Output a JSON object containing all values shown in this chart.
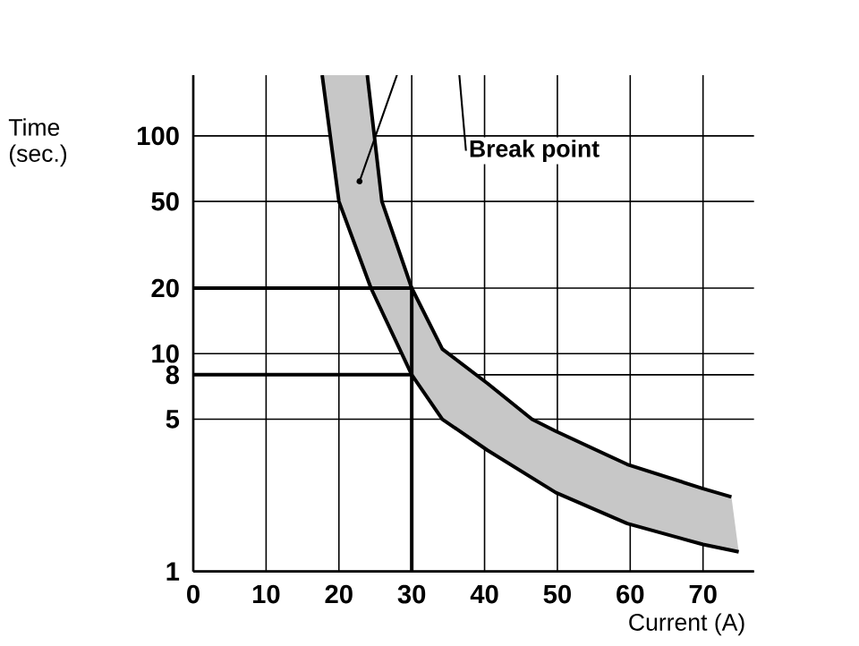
{
  "chart_data": {
    "type": "line",
    "xlabel": "Current (A)",
    "ylabel": "Time (sec.)",
    "log": "y",
    "grid": true,
    "marker": "none",
    "line_style": "solid",
    "xlim": [
      0,
      77
    ],
    "ylim": [
      1,
      190
    ],
    "xticks": [
      0,
      10,
      20,
      30,
      40,
      50,
      60,
      70
    ],
    "yticks": [
      1,
      5,
      8,
      10,
      20,
      50,
      100
    ],
    "series": [
      {
        "color": "#000000",
        "x": [
          17.7,
          20,
          24.4,
          30,
          34.2,
          40.4,
          49.8,
          59.6,
          70,
          74.9
        ],
        "values": [
          190,
          50,
          20,
          8,
          5,
          3.6,
          2.3,
          1.66,
          1.33,
          1.23
        ]
      },
      {
        "color": "#000000",
        "x": [
          23.9,
          25.9,
          30,
          34.2,
          40.4,
          46.5,
          49.8,
          59.6,
          70,
          73.9
        ],
        "values": [
          190,
          50,
          20,
          10.5,
          7.3,
          5,
          4.4,
          3.1,
          2.4,
          2.2
        ]
      },
      {
        "color": "#000000",
        "x": [
          0,
          30,
          30
        ],
        "values": [
          20,
          20,
          1
        ]
      },
      {
        "color": "#000000",
        "x": [
          0,
          30
        ],
        "values": [
          8,
          8
        ]
      }
    ],
    "annotations": [
      {
        "text": "Break point",
        "x": 22.7,
        "y": 60
      }
    ]
  }
}
